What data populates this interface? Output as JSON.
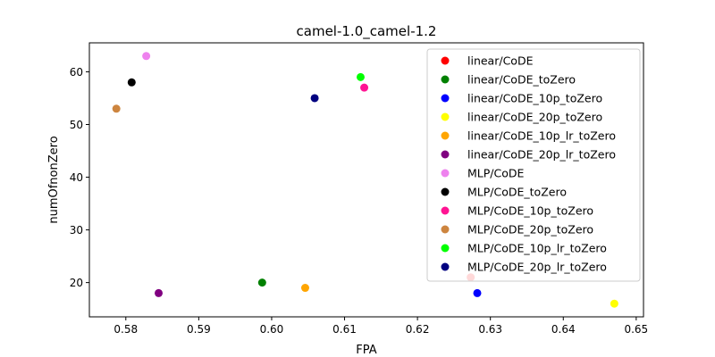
{
  "chart_data": {
    "type": "scatter",
    "title": "camel-1.0_camel-1.2",
    "xlabel": "FPA",
    "ylabel": "numOfnonZero",
    "xlim": [
      0.575,
      0.651
    ],
    "ylim": [
      13.5,
      65.5
    ],
    "xticks": [
      0.58,
      0.59,
      0.6,
      0.61,
      0.62,
      0.63,
      0.64,
      0.65
    ],
    "xtick_labels": [
      "0.58",
      "0.59",
      "0.60",
      "0.61",
      "0.62",
      "0.63",
      "0.64",
      "0.65"
    ],
    "yticks": [
      20,
      30,
      40,
      50,
      60
    ],
    "ytick_labels": [
      "20",
      "30",
      "40",
      "50",
      "60"
    ],
    "grid": false,
    "legend_position": "top-right",
    "series": [
      {
        "name": "linear/CoDE",
        "color": "#ff0000",
        "x": 0.6273,
        "y": 21
      },
      {
        "name": "linear/CoDE_toZero",
        "color": "#008000",
        "x": 0.5987,
        "y": 20
      },
      {
        "name": "linear/CoDE_10p_toZero",
        "color": "#0000ff",
        "x": 0.6282,
        "y": 18
      },
      {
        "name": "linear/CoDE_20p_toZero",
        "color": "#ffff00",
        "x": 0.647,
        "y": 16
      },
      {
        "name": "linear/CoDE_10p_lr_toZero",
        "color": "#ffa500",
        "x": 0.6046,
        "y": 19
      },
      {
        "name": "linear/CoDE_20p_lr_toZero",
        "color": "#800080",
        "x": 0.5845,
        "y": 18
      },
      {
        "name": "MLP/CoDE",
        "color": "#ee82ee",
        "x": 0.5828,
        "y": 63
      },
      {
        "name": "MLP/CoDE_toZero",
        "color": "#000000",
        "x": 0.5808,
        "y": 58
      },
      {
        "name": "MLP/CoDE_10p_toZero",
        "color": "#ff1493",
        "x": 0.6127,
        "y": 57
      },
      {
        "name": "MLP/CoDE_20p_toZero",
        "color": "#cd853f",
        "x": 0.5787,
        "y": 53
      },
      {
        "name": "MLP/CoDE_10p_lr_toZero",
        "color": "#00ff00",
        "x": 0.6122,
        "y": 59
      },
      {
        "name": "MLP/CoDE_20p_lr_toZero",
        "color": "#000080",
        "x": 0.6059,
        "y": 55
      }
    ]
  }
}
